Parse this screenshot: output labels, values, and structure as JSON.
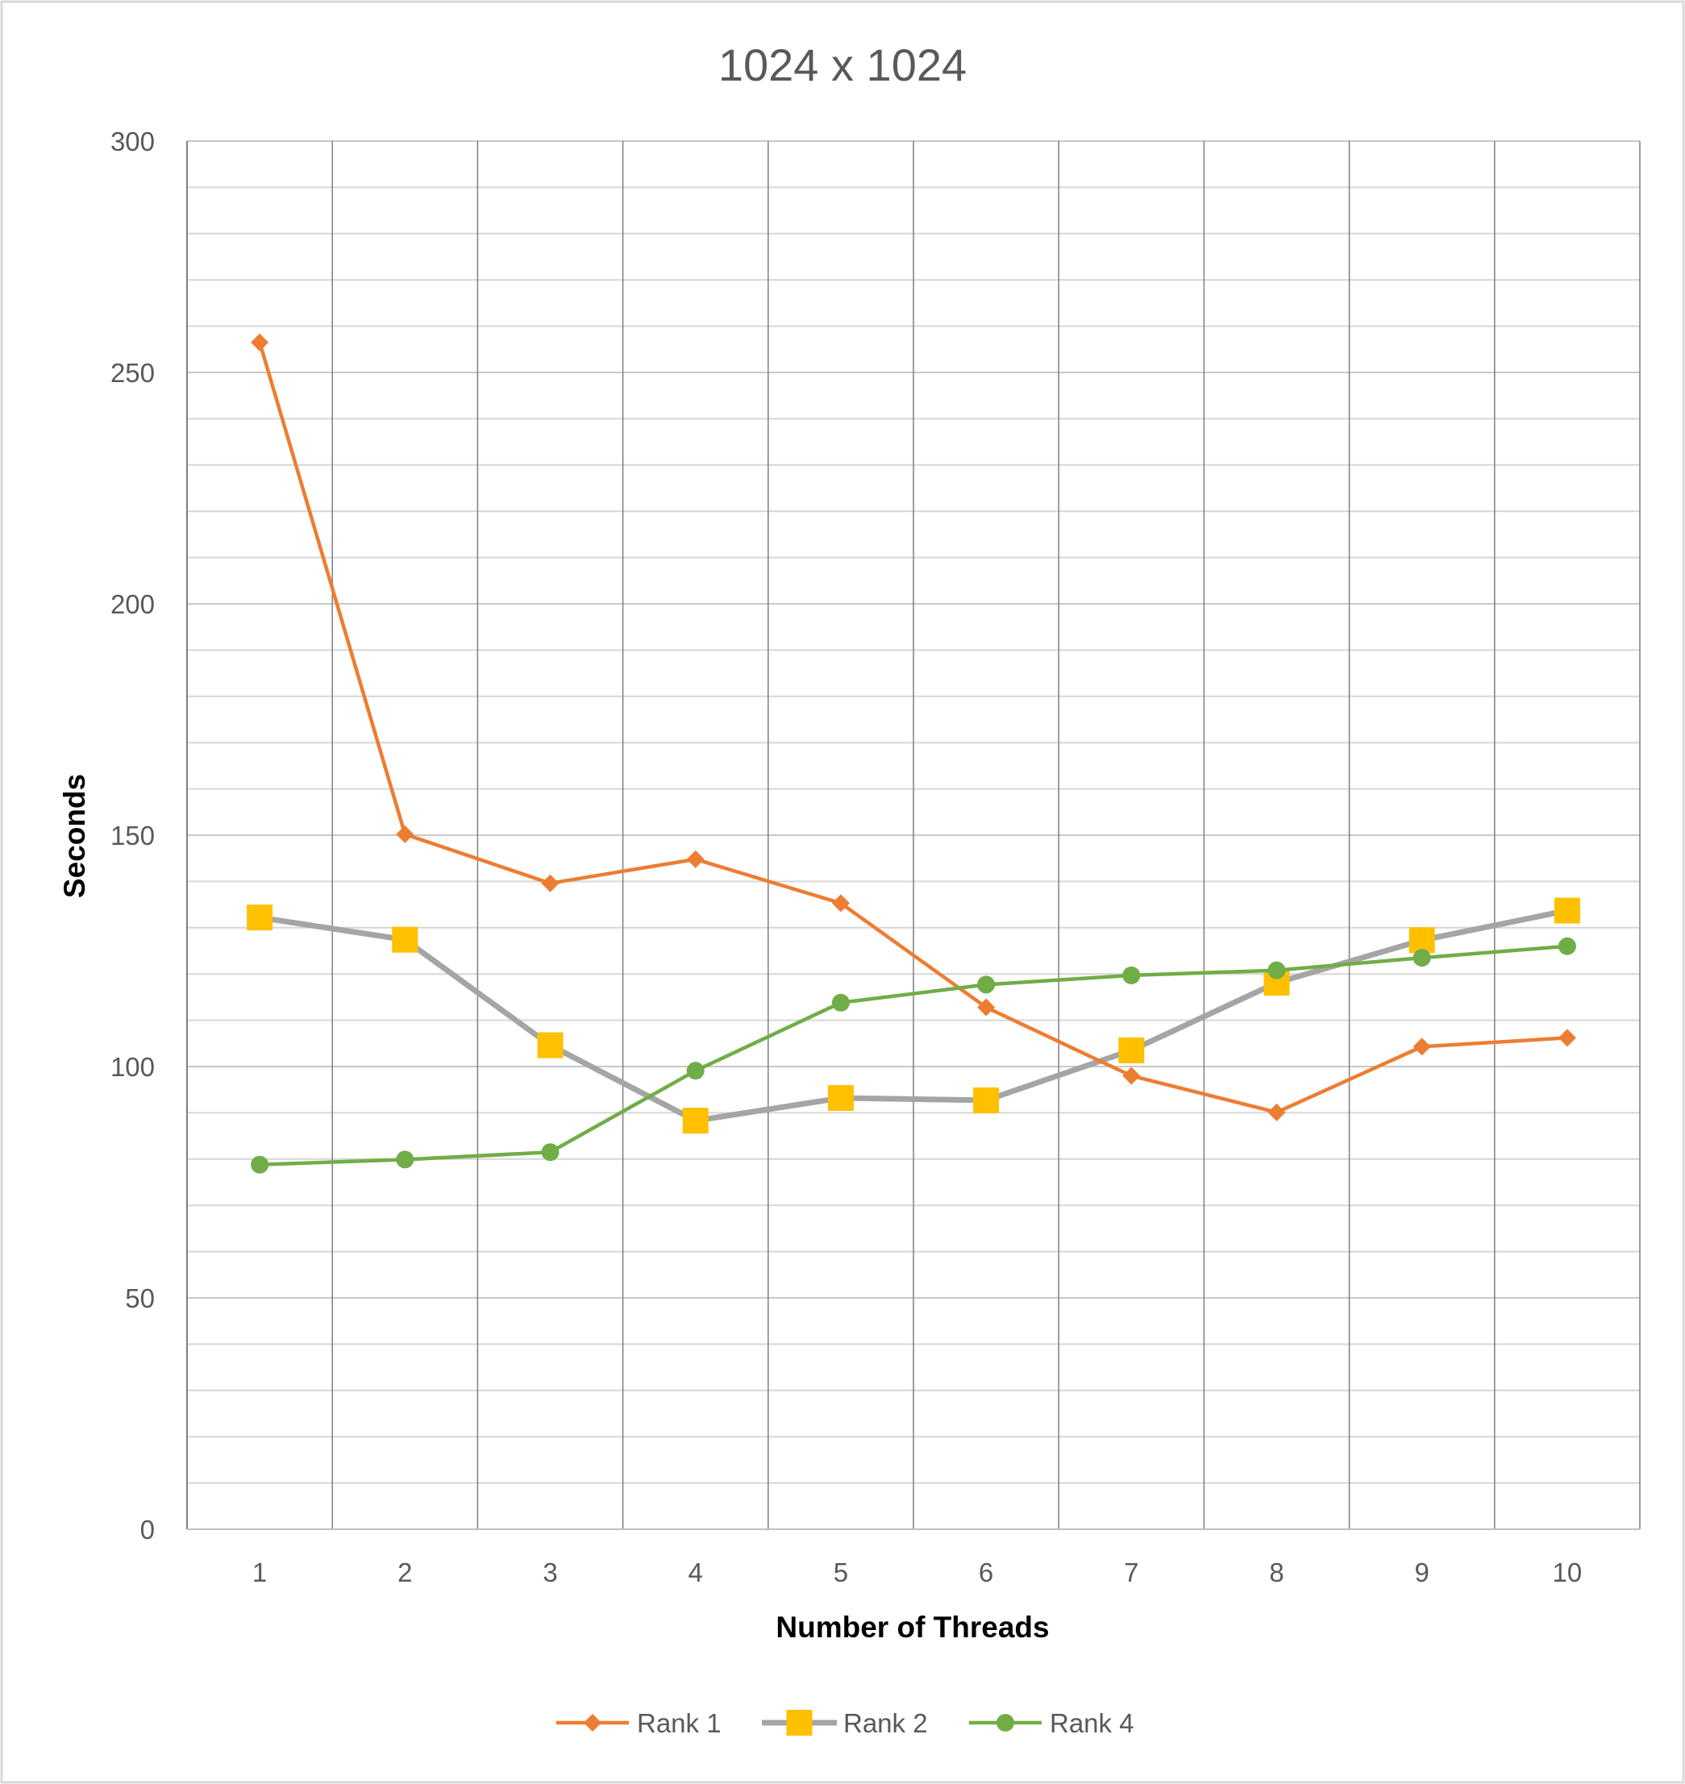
{
  "chart_data": {
    "type": "line",
    "title": "1024 x 1024",
    "xlabel": "Number of Threads",
    "ylabel": "Seconds",
    "categories": [
      "1",
      "2",
      "3",
      "4",
      "5",
      "6",
      "7",
      "8",
      "9",
      "10"
    ],
    "y_ticks": [
      "0",
      "50",
      "100",
      "150",
      "200",
      "250",
      "300"
    ],
    "ylim": [
      0,
      300
    ],
    "y_major_step": 50,
    "y_minor_step": 10,
    "grid": true,
    "legend_position": "bottom",
    "series": [
      {
        "name": "Rank 1",
        "color": "#ED7D31",
        "marker": "diamond",
        "values": [
          256.5,
          150.2,
          139.6,
          144.8,
          135.3,
          112.8,
          98.0,
          90.1,
          104.3,
          106.2
        ]
      },
      {
        "name": "Rank 2",
        "color": "#A5A5A5",
        "marker_color": "#FFC000",
        "marker": "square",
        "values": [
          132.2,
          127.4,
          104.6,
          88.3,
          93.2,
          92.7,
          103.5,
          118.1,
          127.3,
          133.7
        ]
      },
      {
        "name": "Rank 4",
        "color": "#70AD47",
        "marker": "circle",
        "values": [
          78.8,
          79.9,
          81.5,
          99.1,
          113.8,
          117.7,
          119.7,
          120.8,
          123.5,
          126.0
        ]
      }
    ]
  }
}
